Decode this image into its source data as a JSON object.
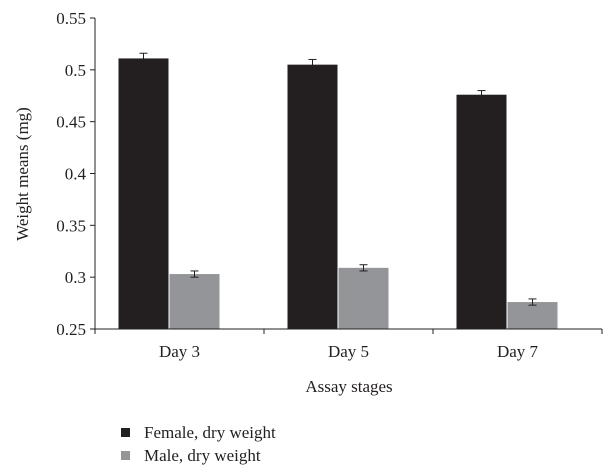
{
  "chart_data": {
    "type": "bar",
    "title": "",
    "xlabel": "Assay stages",
    "ylabel": "Weight means (mg)",
    "categories": [
      "Day 3",
      "Day 5",
      "Day 7"
    ],
    "ylim": [
      0.25,
      0.55
    ],
    "yticks": [
      0.25,
      0.3,
      0.35,
      0.4,
      0.45,
      0.5,
      0.55
    ],
    "ytick_labels": [
      "0.25",
      "0.3",
      "0.35",
      "0.4",
      "0.45",
      "0.5",
      "0.55"
    ],
    "grid": false,
    "legend_position": "bottom-left",
    "series": [
      {
        "name": "Female, dry weight",
        "color": "#231f20",
        "values": [
          0.511,
          0.505,
          0.476
        ],
        "errors": [
          0.005,
          0.005,
          0.004
        ]
      },
      {
        "name": "Male, dry weight",
        "color": "#939598",
        "values": [
          0.303,
          0.309,
          0.276
        ],
        "errors": [
          0.003,
          0.003,
          0.003
        ]
      }
    ]
  }
}
